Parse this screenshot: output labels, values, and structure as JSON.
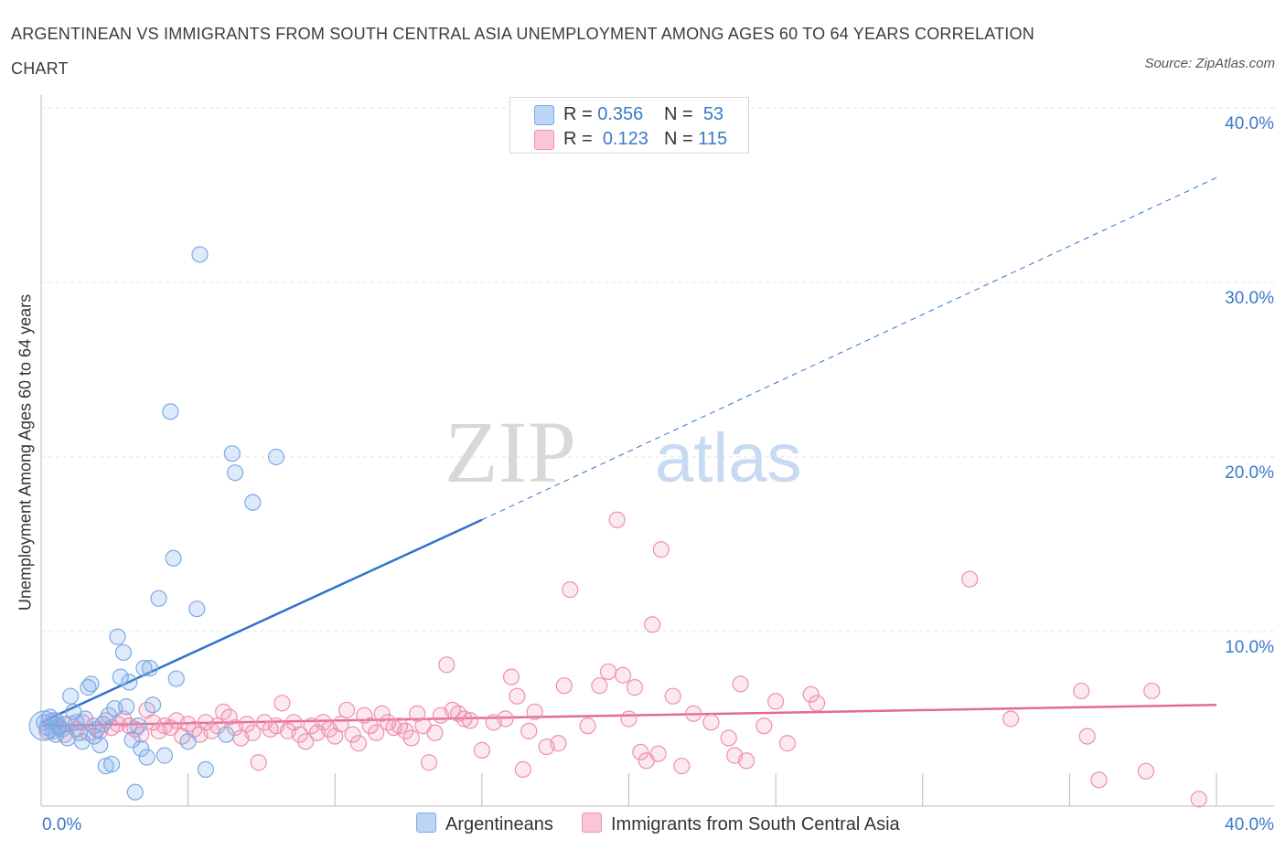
{
  "title": "ARGENTINEAN VS IMMIGRANTS FROM SOUTH CENTRAL ASIA UNEMPLOYMENT AMONG AGES 60 TO 64 YEARS CORRELATION CHART",
  "source": "Source: ZipAtlas.com",
  "watermark": {
    "zip": "ZIP",
    "atlas": "atlas"
  },
  "colors": {
    "blue": "#7aaae8",
    "blue_line": "#2f72cc",
    "pink": "#ee8fb0",
    "pink_line": "#e46a94",
    "axis_text": "#3b79c9"
  },
  "legend": {
    "rows": [
      {
        "r_label": "R =",
        "r_value": "0.356",
        "n_label": "N =",
        "n_value": "53"
      },
      {
        "r_label": "R =",
        "r_value": "0.123",
        "n_label": "N =",
        "n_value": "115"
      }
    ]
  },
  "chart_data": {
    "type": "scatter",
    "title": "ARGENTINEAN VS IMMIGRANTS FROM SOUTH CENTRAL ASIA UNEMPLOYMENT AMONG AGES 60 TO 64 YEARS CORRELATION CHART",
    "xlabel": "",
    "ylabel": "Unemployment Among Ages 60 to 64 years",
    "xlim": [
      0,
      40
    ],
    "ylim": [
      0,
      40
    ],
    "x_tick_labels": [
      "0.0%",
      "40.0%"
    ],
    "y_tick_labels": [
      "10.0%",
      "20.0%",
      "30.0%",
      "40.0%"
    ],
    "y_ticks": [
      10,
      20,
      30,
      40
    ],
    "grid": true,
    "series": [
      {
        "name": "Argentineans",
        "R": 0.356,
        "N": 53,
        "trend": {
          "x0": 0,
          "y0": 4.8,
          "x1": 15,
          "y1": 16.4,
          "dashed_to_x": 40,
          "dashed_to_y": 36.0
        },
        "points": [
          [
            0.1,
            4.8
          ],
          [
            0.2,
            4.5
          ],
          [
            0.3,
            5.1
          ],
          [
            0.4,
            4.3
          ],
          [
            0.5,
            4.9
          ],
          [
            0.5,
            4.1
          ],
          [
            0.6,
            4.6
          ],
          [
            0.7,
            4.4
          ],
          [
            0.8,
            4.7
          ],
          [
            0.9,
            3.9
          ],
          [
            1.0,
            6.3
          ],
          [
            1.1,
            5.4
          ],
          [
            1.2,
            4.8
          ],
          [
            1.3,
            4.2
          ],
          [
            1.4,
            3.7
          ],
          [
            1.5,
            5.0
          ],
          [
            1.6,
            6.8
          ],
          [
            1.7,
            7.0
          ],
          [
            1.8,
            4.0
          ],
          [
            1.9,
            4.4
          ],
          [
            2.0,
            3.5
          ],
          [
            2.1,
            4.7
          ],
          [
            2.2,
            2.3
          ],
          [
            2.3,
            5.2
          ],
          [
            2.4,
            2.4
          ],
          [
            2.5,
            5.6
          ],
          [
            2.6,
            9.7
          ],
          [
            2.7,
            7.4
          ],
          [
            2.8,
            8.8
          ],
          [
            2.9,
            5.7
          ],
          [
            3.0,
            7.1
          ],
          [
            3.1,
            3.8
          ],
          [
            3.2,
            0.8
          ],
          [
            3.3,
            4.6
          ],
          [
            3.4,
            3.3
          ],
          [
            3.5,
            7.9
          ],
          [
            3.6,
            2.8
          ],
          [
            3.7,
            7.9
          ],
          [
            3.8,
            5.8
          ],
          [
            4.0,
            11.9
          ],
          [
            4.2,
            2.9
          ],
          [
            4.4,
            22.6
          ],
          [
            4.5,
            14.2
          ],
          [
            4.6,
            7.3
          ],
          [
            5.0,
            3.7
          ],
          [
            5.3,
            11.3
          ],
          [
            5.4,
            31.6
          ],
          [
            5.6,
            2.1
          ],
          [
            6.3,
            4.1
          ],
          [
            6.5,
            20.2
          ],
          [
            6.6,
            19.1
          ],
          [
            7.2,
            17.4
          ],
          [
            8.0,
            20.0
          ]
        ]
      },
      {
        "name": "Immigrants from South Central Asia",
        "R": 0.123,
        "N": 115,
        "trend": {
          "x0": 0,
          "y0": 4.6,
          "x1": 40,
          "y1": 5.8
        },
        "points": [
          [
            0.2,
            4.3
          ],
          [
            0.4,
            4.9
          ],
          [
            0.6,
            4.5
          ],
          [
            0.8,
            4.1
          ],
          [
            1.0,
            4.7
          ],
          [
            1.2,
            4.4
          ],
          [
            1.4,
            4.8
          ],
          [
            1.6,
            4.2
          ],
          [
            1.8,
            4.6
          ],
          [
            2.0,
            4.3
          ],
          [
            2.2,
            4.9
          ],
          [
            2.4,
            4.5
          ],
          [
            2.6,
            4.7
          ],
          [
            2.8,
            5.0
          ],
          [
            3.0,
            4.6
          ],
          [
            3.2,
            4.4
          ],
          [
            3.4,
            4.1
          ],
          [
            3.6,
            5.5
          ],
          [
            3.8,
            4.8
          ],
          [
            4.0,
            4.3
          ],
          [
            4.2,
            4.6
          ],
          [
            4.4,
            4.5
          ],
          [
            4.6,
            4.9
          ],
          [
            4.8,
            4.0
          ],
          [
            5.0,
            4.7
          ],
          [
            5.2,
            4.4
          ],
          [
            5.4,
            4.1
          ],
          [
            5.6,
            4.8
          ],
          [
            5.8,
            4.3
          ],
          [
            6.0,
            4.6
          ],
          [
            6.2,
            5.4
          ],
          [
            6.4,
            5.1
          ],
          [
            6.6,
            4.5
          ],
          [
            6.8,
            3.9
          ],
          [
            7.0,
            4.7
          ],
          [
            7.2,
            4.2
          ],
          [
            7.4,
            2.5
          ],
          [
            7.6,
            4.8
          ],
          [
            7.8,
            4.4
          ],
          [
            8.0,
            4.6
          ],
          [
            8.2,
            5.9
          ],
          [
            8.4,
            4.3
          ],
          [
            8.6,
            4.8
          ],
          [
            8.8,
            4.1
          ],
          [
            9.0,
            3.7
          ],
          [
            9.2,
            4.6
          ],
          [
            9.4,
            4.2
          ],
          [
            9.6,
            4.8
          ],
          [
            9.8,
            4.4
          ],
          [
            10.0,
            4.0
          ],
          [
            10.2,
            4.7
          ],
          [
            10.4,
            5.5
          ],
          [
            10.6,
            4.1
          ],
          [
            10.8,
            3.6
          ],
          [
            11.0,
            5.2
          ],
          [
            11.2,
            4.6
          ],
          [
            11.4,
            4.2
          ],
          [
            11.6,
            5.3
          ],
          [
            11.8,
            4.8
          ],
          [
            12.0,
            4.5
          ],
          [
            12.2,
            4.6
          ],
          [
            12.4,
            4.3
          ],
          [
            12.6,
            3.9
          ],
          [
            12.8,
            5.3
          ],
          [
            13.0,
            4.6
          ],
          [
            13.2,
            2.5
          ],
          [
            13.4,
            4.2
          ],
          [
            13.6,
            5.2
          ],
          [
            13.8,
            8.1
          ],
          [
            14.0,
            5.5
          ],
          [
            14.2,
            5.3
          ],
          [
            14.4,
            5.0
          ],
          [
            14.6,
            4.9
          ],
          [
            15.0,
            3.2
          ],
          [
            15.4,
            4.8
          ],
          [
            15.8,
            5.0
          ],
          [
            16.0,
            7.4
          ],
          [
            16.2,
            6.3
          ],
          [
            16.4,
            2.1
          ],
          [
            16.6,
            4.3
          ],
          [
            16.8,
            5.4
          ],
          [
            17.2,
            3.4
          ],
          [
            17.6,
            3.6
          ],
          [
            17.8,
            6.9
          ],
          [
            18.0,
            12.4
          ],
          [
            18.6,
            4.6
          ],
          [
            19.0,
            6.9
          ],
          [
            19.3,
            7.7
          ],
          [
            19.6,
            16.4
          ],
          [
            19.8,
            7.5
          ],
          [
            20.0,
            5.0
          ],
          [
            20.2,
            6.8
          ],
          [
            20.4,
            3.1
          ],
          [
            20.6,
            2.6
          ],
          [
            20.8,
            10.4
          ],
          [
            21.0,
            3.0
          ],
          [
            21.1,
            14.7
          ],
          [
            21.5,
            6.3
          ],
          [
            21.8,
            2.3
          ],
          [
            22.2,
            5.3
          ],
          [
            22.8,
            4.8
          ],
          [
            23.4,
            3.9
          ],
          [
            23.6,
            2.9
          ],
          [
            23.8,
            7.0
          ],
          [
            24.0,
            2.6
          ],
          [
            24.6,
            4.6
          ],
          [
            25.0,
            6.0
          ],
          [
            25.4,
            3.6
          ],
          [
            26.2,
            6.4
          ],
          [
            26.4,
            5.9
          ],
          [
            31.6,
            13.0
          ],
          [
            33.0,
            5.0
          ],
          [
            35.4,
            6.6
          ],
          [
            35.6,
            4.0
          ],
          [
            36.0,
            1.5
          ],
          [
            37.6,
            2.0
          ],
          [
            37.8,
            6.6
          ],
          [
            39.4,
            0.4
          ]
        ]
      }
    ]
  }
}
